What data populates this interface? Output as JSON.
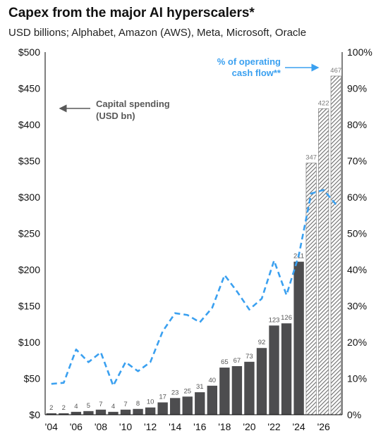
{
  "chart_data": {
    "type": "bar",
    "title": "Capex from the major AI hyperscalers*",
    "subtitle": "USD billions; Alphabet, Amazon (AWS), Meta, Microsoft, Oracle",
    "x_tick_labels": [
      "'04",
      "'06",
      "'08",
      "'10",
      "'12",
      "'14",
      "'16",
      "'18",
      "'20",
      "'22",
      "'24",
      "'26"
    ],
    "categories": [
      "2004",
      "2005",
      "2006",
      "2007",
      "2008",
      "2009",
      "2010",
      "2011",
      "2012",
      "2013",
      "2014",
      "2015",
      "2016",
      "2017",
      "2018",
      "2019",
      "2020",
      "2021",
      "2022",
      "2023",
      "2024",
      "2025",
      "2026",
      "2027"
    ],
    "series": [
      {
        "name": "Capital spending (USD bn)",
        "type": "bar",
        "axis": "left",
        "color": "#4d4d4f",
        "forecast_pattern": "hatched",
        "values": [
          2,
          2,
          4,
          5,
          7,
          4,
          7,
          8,
          10,
          17,
          23,
          25,
          31,
          40,
          65,
          67,
          73,
          92,
          123,
          126,
          211,
          347,
          422,
          467
        ],
        "forecast_flags": [
          false,
          false,
          false,
          false,
          false,
          false,
          false,
          false,
          false,
          false,
          false,
          false,
          false,
          false,
          false,
          false,
          false,
          false,
          false,
          false,
          false,
          true,
          true,
          true
        ]
      },
      {
        "name": "% of operating cash flow**",
        "type": "line",
        "style": "dashed",
        "axis": "right",
        "color": "#3aa0f0",
        "values": [
          8.5,
          8.8,
          18.0,
          14.5,
          17.2,
          8.0,
          14.5,
          12.0,
          14.5,
          23.0,
          28.0,
          27.5,
          25.5,
          29.5,
          38.5,
          34.0,
          29.0,
          32.0,
          42.5,
          33.0,
          44.0,
          61.0,
          62.0,
          58.0
        ]
      }
    ],
    "y_left": {
      "min": 0,
      "max": 500,
      "step": 50,
      "tick_labels": [
        "$0",
        "$50",
        "$100",
        "$150",
        "$200",
        "$250",
        "$300",
        "$350",
        "$400",
        "$450",
        "$500"
      ]
    },
    "y_right": {
      "min": 0,
      "max": 100,
      "step": 10,
      "tick_labels": [
        "0%",
        "10%",
        "20%",
        "30%",
        "40%",
        "50%",
        "60%",
        "70%",
        "80%",
        "90%",
        "100%"
      ]
    },
    "grid": false,
    "annotations": [
      {
        "text": [
          "Capital spending",
          "(USD bn)"
        ],
        "color": "#595959",
        "arrow": "left"
      },
      {
        "text": [
          "% of operating",
          "cash flow**"
        ],
        "color": "#3aa0f0",
        "arrow": "right"
      }
    ]
  }
}
